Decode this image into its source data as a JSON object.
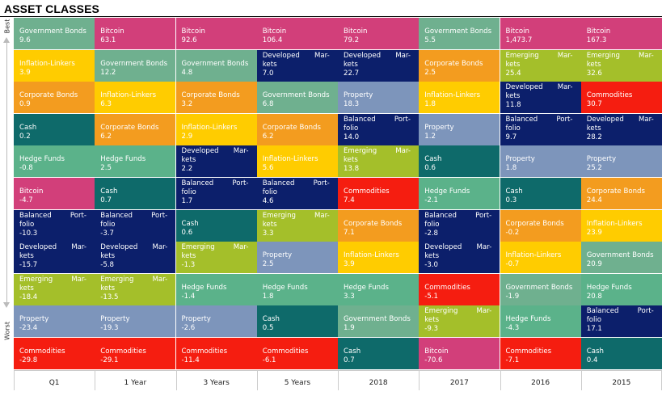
{
  "title": "ASSET CLASSES",
  "axis": {
    "best": "Best",
    "worst": "Worst"
  },
  "colors": {
    "Government Bonds": "#6fb08f",
    "Bitcoin": "#d23f7a",
    "Inflation-Linkers": "#ffcc00",
    "Corporate Bonds": "#f39c1f",
    "Cash": "#0e6a6a",
    "Hedge Funds": "#5bb28a",
    "Balanced Portfolio": "#0c1f6b",
    "Developed Markets": "#0c1f6b",
    "Emerging Markets": "#a4bf2a",
    "Property": "#7d95bb",
    "Commodities": "#f51d10"
  },
  "chart_data": {
    "type": "table",
    "title": "ASSET CLASSES",
    "columns": [
      {
        "label": "Q1",
        "cells": [
          {
            "asset": "Government Bonds",
            "value": "9.6"
          },
          {
            "asset": "Inflation-Linkers",
            "value": "3.9"
          },
          {
            "asset": "Corporate Bonds",
            "value": "0.9"
          },
          {
            "asset": "Cash",
            "value": "0.2"
          },
          {
            "asset": "Hedge Funds",
            "value": "-0.8"
          },
          {
            "asset": "Bitcoin",
            "value": "-4.7"
          },
          {
            "asset": "Balanced Portfolio",
            "value": "-10.3"
          },
          {
            "asset": "Developed Markets",
            "value": "-15.7"
          },
          {
            "asset": "Emerging Markets",
            "value": "-18.4"
          },
          {
            "asset": "Property",
            "value": "-23.4"
          },
          {
            "asset": "Commodities",
            "value": "-29.8"
          }
        ]
      },
      {
        "label": "1 Year",
        "cells": [
          {
            "asset": "Bitcoin",
            "value": "63.1"
          },
          {
            "asset": "Government Bonds",
            "value": "12.2"
          },
          {
            "asset": "Inflation-Linkers",
            "value": "6.3"
          },
          {
            "asset": "Corporate Bonds",
            "value": "6.2"
          },
          {
            "asset": "Hedge Funds",
            "value": "2.5"
          },
          {
            "asset": "Cash",
            "value": "0.7"
          },
          {
            "asset": "Balanced Portfolio",
            "value": "-3.7"
          },
          {
            "asset": "Developed Markets",
            "value": "-5.8"
          },
          {
            "asset": "Emerging Markets",
            "value": "-13.5"
          },
          {
            "asset": "Property",
            "value": "-19.3"
          },
          {
            "asset": "Commodities",
            "value": "-29.1"
          }
        ]
      },
      {
        "label": "3 Years",
        "cells": [
          {
            "asset": "Bitcoin",
            "value": "92.6"
          },
          {
            "asset": "Government Bonds",
            "value": "4.8"
          },
          {
            "asset": "Corporate Bonds",
            "value": "3.2"
          },
          {
            "asset": "Inflation-Linkers",
            "value": "2.9"
          },
          {
            "asset": "Developed Markets",
            "value": "2.2"
          },
          {
            "asset": "Balanced Portfolio",
            "value": "1.7"
          },
          {
            "asset": "Cash",
            "value": "0.6"
          },
          {
            "asset": "Emerging Markets",
            "value": "-1.3"
          },
          {
            "asset": "Hedge Funds",
            "value": "-1.4"
          },
          {
            "asset": "Property",
            "value": "-2.6"
          },
          {
            "asset": "Commodities",
            "value": "-11.4"
          }
        ]
      },
      {
        "label": "5 Years",
        "cells": [
          {
            "asset": "Bitcoin",
            "value": "106.4"
          },
          {
            "asset": "Developed Markets",
            "value": "7.0"
          },
          {
            "asset": "Government Bonds",
            "value": "6.8"
          },
          {
            "asset": "Corporate Bonds",
            "value": "6.2"
          },
          {
            "asset": "Inflation-Linkers",
            "value": "5.6"
          },
          {
            "asset": "Balanced Portfolio",
            "value": "4.6"
          },
          {
            "asset": "Emerging Markets",
            "value": "3.3"
          },
          {
            "asset": "Property",
            "value": "2.5"
          },
          {
            "asset": "Hedge Funds",
            "value": "1.8"
          },
          {
            "asset": "Cash",
            "value": "0.5"
          },
          {
            "asset": "Commodities",
            "value": "-6.1"
          }
        ]
      },
      {
        "label": "2018",
        "cells": [
          {
            "asset": "Bitcoin",
            "value": "79.2"
          },
          {
            "asset": "Developed Markets",
            "value": "22.7"
          },
          {
            "asset": "Property",
            "value": "18.3"
          },
          {
            "asset": "Balanced Portfolio",
            "value": "14.0"
          },
          {
            "asset": "Emerging Markets",
            "value": "13.8"
          },
          {
            "asset": "Commodities",
            "value": "7.4"
          },
          {
            "asset": "Corporate Bonds",
            "value": "7.1"
          },
          {
            "asset": "Inflation-Linkers",
            "value": "3.9"
          },
          {
            "asset": "Hedge Funds",
            "value": "3.3"
          },
          {
            "asset": "Government Bonds",
            "value": "1.9"
          },
          {
            "asset": "Cash",
            "value": "0.7"
          }
        ]
      },
      {
        "label": "2017",
        "cells": [
          {
            "asset": "Government Bonds",
            "value": "5.5"
          },
          {
            "asset": "Corporate Bonds",
            "value": "2.5"
          },
          {
            "asset": "Inflation-Linkers",
            "value": "1.8"
          },
          {
            "asset": "Property",
            "value": "1.2"
          },
          {
            "asset": "Cash",
            "value": "0.6"
          },
          {
            "asset": "Hedge Funds",
            "value": "-2.1"
          },
          {
            "asset": "Balanced Portfolio",
            "value": "-2.8"
          },
          {
            "asset": "Developed Markets",
            "value": "-3.0"
          },
          {
            "asset": "Commodities",
            "value": "-5.1"
          },
          {
            "asset": "Emerging Markets",
            "value": "-9.3"
          },
          {
            "asset": "Bitcoin",
            "value": "-70.6"
          }
        ]
      },
      {
        "label": "2016",
        "cells": [
          {
            "asset": "Bitcoin",
            "value": "1,473.7"
          },
          {
            "asset": "Emerging Markets",
            "value": "25.4"
          },
          {
            "asset": "Developed Markets",
            "value": "11.8"
          },
          {
            "asset": "Balanced Portfolio",
            "value": "9.7"
          },
          {
            "asset": "Property",
            "value": "1.8"
          },
          {
            "asset": "Cash",
            "value": "0.3"
          },
          {
            "asset": "Corporate Bonds",
            "value": "-0.2"
          },
          {
            "asset": "Inflation-Linkers",
            "value": "-0.7"
          },
          {
            "asset": "Government Bonds",
            "value": "-1.9"
          },
          {
            "asset": "Hedge Funds",
            "value": "-4.3"
          },
          {
            "asset": "Commodities",
            "value": "-7.1"
          }
        ]
      },
      {
        "label": "2015",
        "cells": [
          {
            "asset": "Bitcoin",
            "value": "167.3"
          },
          {
            "asset": "Emerging Markets",
            "value": "32.6"
          },
          {
            "asset": "Commodities",
            "value": "30.7"
          },
          {
            "asset": "Developed Markets",
            "value": "28.2"
          },
          {
            "asset": "Property",
            "value": "25.2"
          },
          {
            "asset": "Corporate Bonds",
            "value": "24.4"
          },
          {
            "asset": "Inflation-Linkers",
            "value": "23.9"
          },
          {
            "asset": "Government Bonds",
            "value": "20.9"
          },
          {
            "asset": "Hedge Funds",
            "value": "20.8"
          },
          {
            "asset": "Balanced Portfolio",
            "value": "17.1"
          },
          {
            "asset": "Cash",
            "value": "0.4"
          }
        ]
      }
    ]
  }
}
